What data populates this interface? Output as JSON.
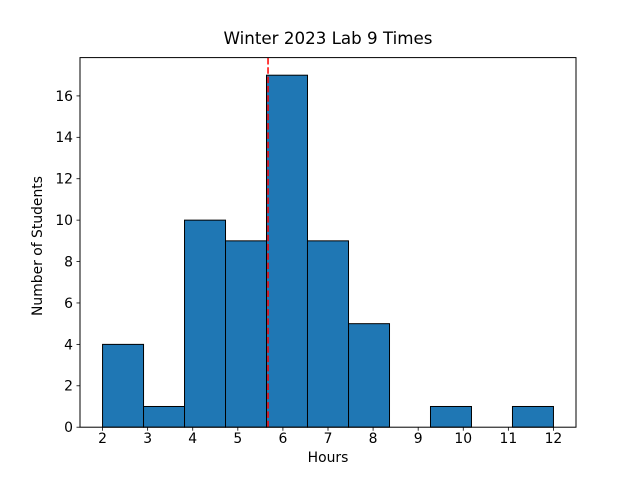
{
  "figure": {
    "background": "#ffffff"
  },
  "chart_data": {
    "type": "bar",
    "subtype": "histogram",
    "title": "Winter 2023 Lab 9 Times",
    "xlabel": "Hours",
    "ylabel": "Number of Students",
    "bin_edges": [
      2.0,
      2.909,
      3.818,
      4.727,
      5.636,
      6.545,
      7.455,
      8.364,
      9.273,
      10.182,
      11.091,
      12.0
    ],
    "counts": [
      4,
      1,
      10,
      9,
      17,
      9,
      5,
      0,
      1,
      0,
      1
    ],
    "xticks": [
      2,
      3,
      4,
      5,
      6,
      7,
      8,
      9,
      10,
      11,
      12
    ],
    "yticks": [
      0,
      2,
      4,
      6,
      8,
      10,
      12,
      14,
      16
    ],
    "xlim": [
      1.5,
      12.5
    ],
    "ylim": [
      0,
      17.85
    ],
    "grid": false,
    "legend": "none",
    "vline": {
      "x": 5.67,
      "color": "#ff0000",
      "style": "dashed"
    },
    "colors": {
      "bar_fill": "#1f77b4",
      "bar_edge": "#000000",
      "axis": "#000000",
      "text": "#000000"
    }
  }
}
